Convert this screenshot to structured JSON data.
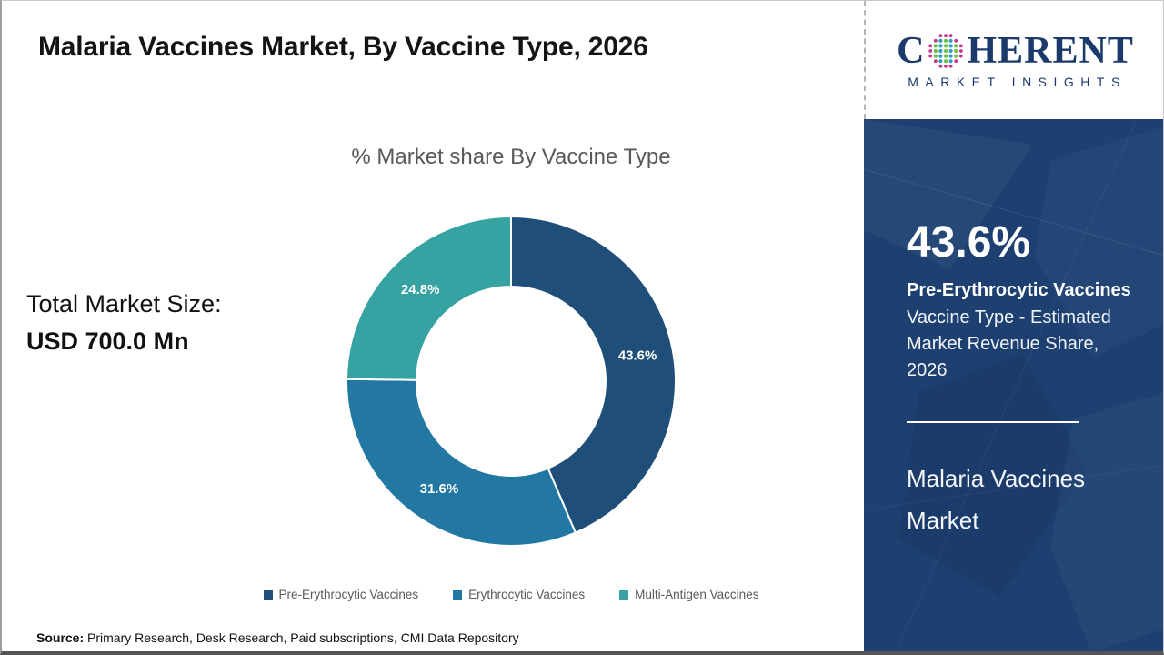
{
  "page": {
    "title": "Malaria Vaccines Market, By Vaccine Type, 2026"
  },
  "logo": {
    "brand_prefix": "C",
    "brand_suffix": "HERENT",
    "brand_subtitle": "MARKET INSIGHTS",
    "brand_color": "#1b3a6b",
    "globe_colors": {
      "outer": "#c2368d",
      "inner_a": "#6cbf47",
      "inner_b": "#2f9ec1"
    }
  },
  "stats": {
    "label": "Total Market Size:",
    "value": "USD 700.0 Mn"
  },
  "chart_data": {
    "type": "pie",
    "subtype": "donut",
    "title": "% Market share By Vaccine Type",
    "categories": [
      "Pre-Erythrocytic Vaccines",
      "Erythrocytic Vaccines",
      "Multi-Antigen Vaccines"
    ],
    "values": [
      43.6,
      31.6,
      24.8
    ],
    "data_labels": [
      "43.6%",
      "31.6%",
      "24.8%"
    ],
    "colors": [
      "#1f4e79",
      "#2277a3",
      "#36a2a2"
    ],
    "start_angle_deg": 0,
    "direction": "clockwise",
    "legend_position": "bottom",
    "total_market_size": "USD 700.0 Mn"
  },
  "sidebar": {
    "background_color": "#1d4071",
    "highlight_value": "43.6%",
    "highlight_segment": "Pre-Erythrocytic Vaccines",
    "highlight_caption": "Vaccine Type - Estimated Market Revenue Share, 2026",
    "report_name": "Malaria Vaccines Market"
  },
  "footer": {
    "source_label": "Source:",
    "source_text": "Primary Research, Desk Research, Paid subscriptions, CMI Data Repository"
  }
}
